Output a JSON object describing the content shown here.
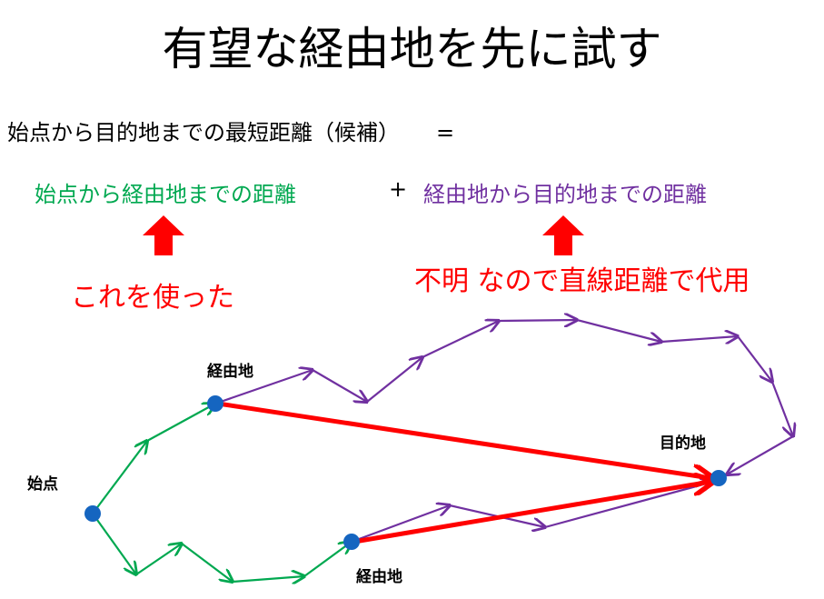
{
  "title": "有望な経由地を先に試す",
  "formula": {
    "lhs": "始点から目的地までの最短距離（候補）",
    "equals": "=",
    "term1": "始点から経由地までの距離",
    "plus": "+",
    "term2": "経由地から目的地までの距離"
  },
  "notes": {
    "left": "これを使った",
    "right": "不明 なので直線距離で代用"
  },
  "nodes": {
    "start": "始点",
    "waypoint_upper": "経由地",
    "waypoint_lower": "経由地",
    "goal": "目的地"
  },
  "colors": {
    "green": "#00a850",
    "purple": "#7030a0",
    "red": "#ff0000",
    "node": "#1565c0"
  }
}
